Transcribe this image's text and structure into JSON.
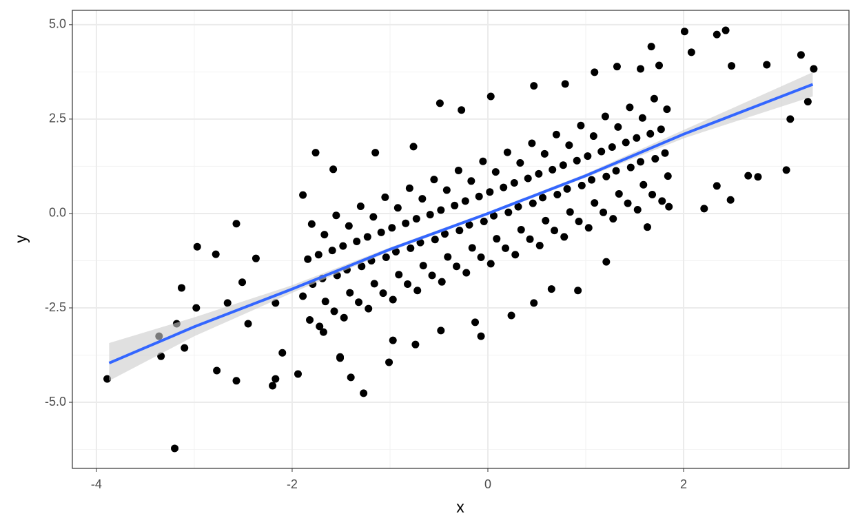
{
  "chart_data": {
    "type": "scatter",
    "xlabel": "x",
    "ylabel": "y",
    "xlim": [
      -4.246,
      3.69
    ],
    "ylim": [
      -6.75,
      5.38
    ],
    "xticks": [
      -4,
      -2,
      0,
      2
    ],
    "yticks": [
      {
        "value": 5,
        "label": "5.0"
      },
      2.5,
      {
        "value": 0,
        "label": "0.0"
      },
      -2.5,
      {
        "value": -5,
        "label": "-5.0"
      }
    ],
    "x_minor_ticks": [
      -3,
      -1,
      1,
      3
    ],
    "y_minor_ticks": [
      3.75,
      1.25,
      -1.25,
      -3.75,
      -6.25
    ],
    "grid": true,
    "color": "#000000",
    "x": [
      -3.89,
      -3.2,
      -3.36,
      -3.34,
      -3.13,
      -2.97,
      -2.57,
      -2.78,
      -1.76,
      -1.58,
      2.01,
      2.43,
      3.2,
      2.85,
      3.33,
      3.05,
      3.27,
      3.09,
      -1.27,
      -1.01,
      0.92,
      -0.07,
      1.67,
      2.08,
      2.21,
      2.66,
      2.76,
      -3.18,
      -3.1,
      -2.77,
      -2.57,
      -2.2,
      -1.94,
      -1.51,
      -1.4,
      -2.98,
      -2.66,
      -2.37,
      -1.89,
      -1.15,
      -0.76,
      -0.49,
      -0.27,
      0.03,
      0.47,
      0.79,
      1.09,
      1.32,
      1.56,
      1.75,
      2.34,
      2.49,
      2.34,
      2.48,
      1.85,
      1.63,
      1.21,
      0.65,
      0.47,
      0.24,
      -0.13,
      -0.48,
      -0.74,
      -0.97,
      -1.51,
      -1.68,
      -1.89,
      -2.17,
      -2.51,
      -2.45,
      -2.1,
      -2.17,
      -1.72,
      -1.82,
      -1.66,
      -1.79,
      -1.69,
      -1.84,
      -1.73,
      -1.67,
      -1.8,
      -1.47,
      -1.57,
      -1.41,
      -1.54,
      -1.44,
      -1.59,
      -1.48,
      -1.42,
      -1.55,
      -1.22,
      -1.32,
      -1.16,
      -1.29,
      -1.19,
      -1.34,
      -1.23,
      -1.17,
      -1.3,
      -0.97,
      -1.07,
      -0.91,
      -1.04,
      -0.94,
      -1.09,
      -0.98,
      -0.92,
      -1.05,
      -0.72,
      -0.82,
      -0.66,
      -0.79,
      -0.69,
      -0.84,
      -0.73,
      -0.67,
      -0.8,
      -0.47,
      -0.57,
      -0.41,
      -0.54,
      -0.44,
      -0.59,
      -0.48,
      -0.42,
      -0.55,
      -0.22,
      -0.32,
      -0.16,
      -0.29,
      -0.19,
      -0.34,
      -0.23,
      -0.17,
      -0.3,
      0.03,
      -0.07,
      0.09,
      -0.04,
      0.06,
      -0.09,
      0.02,
      0.08,
      -0.05,
      0.28,
      0.18,
      0.34,
      0.21,
      0.31,
      0.16,
      0.27,
      0.33,
      0.2,
      0.53,
      0.43,
      0.59,
      0.46,
      0.56,
      0.41,
      0.52,
      0.58,
      0.45,
      0.78,
      0.68,
      0.84,
      0.71,
      0.81,
      0.66,
      0.77,
      0.83,
      0.7,
      1.03,
      0.93,
      1.09,
      0.96,
      1.06,
      0.91,
      1.02,
      1.08,
      0.95,
      1.28,
      1.18,
      1.34,
      1.21,
      1.31,
      1.16,
      1.27,
      1.33,
      1.2,
      1.53,
      1.43,
      1.59,
      1.46,
      1.56,
      1.41,
      1.52,
      1.58,
      1.45,
      1.78,
      1.68,
      1.84,
      1.71,
      1.81,
      1.66,
      1.77,
      1.83,
      1.7
    ],
    "y": [
      -4.38,
      -6.22,
      -3.25,
      -3.78,
      -1.97,
      -0.88,
      -0.27,
      -1.08,
      1.61,
      1.17,
      4.82,
      4.85,
      4.2,
      3.94,
      3.83,
      1.15,
      2.96,
      2.5,
      -4.76,
      -3.94,
      -2.04,
      -3.25,
      4.42,
      4.27,
      0.13,
      1.0,
      0.97,
      -2.92,
      -3.56,
      -4.16,
      -4.43,
      -4.56,
      -4.25,
      -3.83,
      -4.34,
      -2.5,
      -2.37,
      -1.19,
      0.49,
      1.61,
      1.77,
      2.92,
      2.74,
      3.1,
      3.38,
      3.43,
      3.74,
      3.89,
      3.83,
      3.92,
      4.74,
      3.91,
      0.73,
      0.36,
      0.18,
      -0.36,
      -1.28,
      -2.0,
      -2.37,
      -2.7,
      -2.88,
      -3.1,
      -3.47,
      -3.36,
      -3.8,
      -3.14,
      -2.19,
      -2.37,
      -1.82,
      -2.92,
      -3.69,
      -4.38,
      -2.99,
      -2.82,
      -2.33,
      -1.87,
      -1.72,
      -1.21,
      -1.09,
      -0.56,
      -0.28,
      -2.76,
      -2.59,
      -2.1,
      -1.64,
      -1.49,
      -0.98,
      -0.86,
      -0.33,
      -0.05,
      -2.52,
      -2.35,
      -1.86,
      -1.4,
      -1.25,
      -0.74,
      -0.62,
      -0.09,
      0.19,
      -2.28,
      -2.11,
      -1.62,
      -1.16,
      -1.01,
      -0.5,
      -0.38,
      0.15,
      0.43,
      -2.04,
      -1.87,
      -1.38,
      -0.92,
      -0.77,
      -0.26,
      -0.14,
      0.39,
      0.67,
      -1.81,
      -1.64,
      -1.15,
      -0.69,
      -0.54,
      -0.03,
      0.09,
      0.62,
      0.9,
      -1.57,
      -1.4,
      -0.91,
      -0.45,
      -0.3,
      0.21,
      0.33,
      0.86,
      1.14,
      -1.33,
      -1.16,
      -0.67,
      -0.21,
      -0.06,
      0.45,
      0.57,
      1.1,
      1.38,
      -1.09,
      -0.92,
      -0.43,
      0.03,
      0.18,
      0.69,
      0.81,
      1.34,
      1.62,
      -0.85,
      -0.68,
      -0.19,
      0.27,
      0.42,
      0.93,
      1.05,
      1.58,
      1.86,
      -0.62,
      -0.45,
      0.04,
      0.5,
      0.65,
      1.16,
      1.28,
      1.81,
      2.09,
      -0.38,
      -0.21,
      0.28,
      0.74,
      0.89,
      1.4,
      1.52,
      2.05,
      2.33,
      -0.14,
      0.03,
      0.52,
      0.98,
      1.13,
      1.64,
      1.76,
      2.29,
      2.57,
      0.1,
      0.27,
      0.76,
      1.22,
      1.37,
      1.88,
      2.0,
      2.53,
      2.81,
      0.33,
      0.5,
      0.99,
      1.45,
      1.6,
      2.11,
      2.23,
      2.76,
      3.04
    ],
    "smooth": {
      "color": "#3366ff",
      "fill": "#cccccc",
      "x": [
        -3.87,
        -3,
        -2,
        -1,
        0,
        1,
        2,
        3.32
      ],
      "y": [
        -3.96,
        -3.0,
        -2.0,
        -0.95,
        0,
        1.0,
        2.1,
        3.42
      ],
      "ymin": [
        -4.43,
        -3.25,
        -2.1,
        -1.0,
        -0.04,
        0.95,
        1.99,
        3.1
      ],
      "ymax": [
        -3.43,
        -2.75,
        -1.9,
        -0.9,
        0.04,
        1.05,
        2.21,
        3.74
      ]
    }
  }
}
